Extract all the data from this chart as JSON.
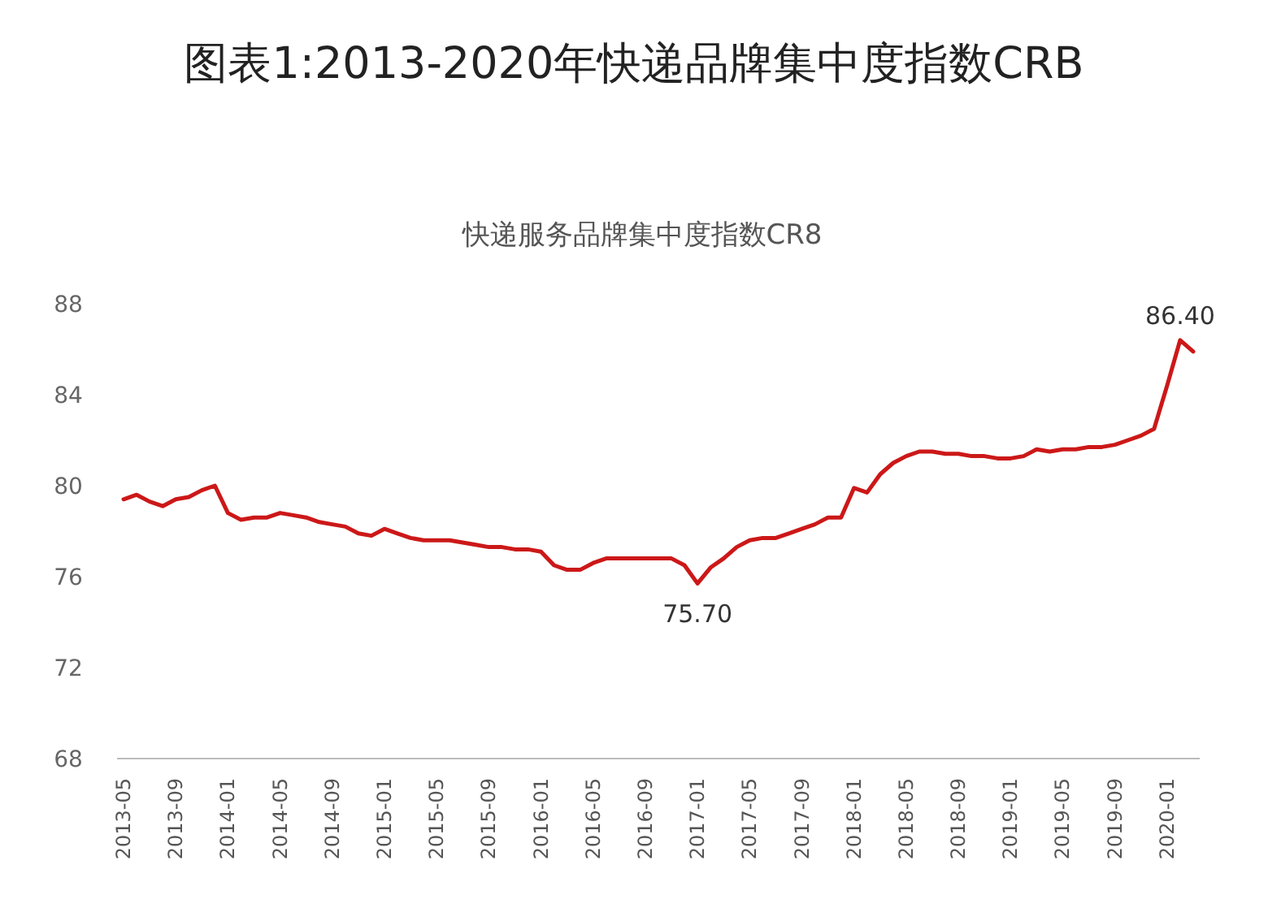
{
  "chart_data": {
    "type": "line",
    "title": "图表1:2013-2020年快递品牌集中度指数CRB",
    "subtitle": "快递服务品牌集中度指数CR8",
    "categories": [
      "2013-05",
      null,
      null,
      null,
      "2013-09",
      null,
      null,
      null,
      "2014-01",
      null,
      null,
      null,
      "2014-05",
      null,
      null,
      null,
      "2014-09",
      null,
      null,
      null,
      "2015-01",
      null,
      null,
      null,
      "2015-05",
      null,
      null,
      null,
      "2015-09",
      null,
      null,
      null,
      "2016-01",
      null,
      null,
      null,
      "2016-05",
      null,
      null,
      null,
      "2016-09",
      null,
      null,
      null,
      "2017-01",
      null,
      null,
      null,
      "2017-05",
      null,
      null,
      null,
      "2017-09",
      null,
      null,
      null,
      "2018-01",
      null,
      null,
      null,
      "2018-05",
      null,
      null,
      null,
      "2018-09",
      null,
      null,
      null,
      "2019-01",
      null,
      null,
      null,
      "2019-05",
      null,
      null,
      null,
      "2019-09",
      null,
      null,
      null,
      "2020-01",
      null,
      null
    ],
    "values": [
      79.4,
      79.6,
      79.3,
      79.1,
      79.4,
      79.5,
      79.8,
      80.0,
      78.8,
      78.5,
      78.6,
      78.6,
      78.8,
      78.7,
      78.6,
      78.4,
      78.3,
      78.2,
      77.9,
      77.8,
      78.1,
      77.9,
      77.7,
      77.6,
      77.6,
      77.6,
      77.5,
      77.4,
      77.3,
      77.3,
      77.2,
      77.2,
      77.1,
      76.5,
      76.3,
      76.3,
      76.6,
      76.8,
      76.8,
      76.8,
      76.8,
      76.8,
      76.8,
      76.5,
      75.7,
      76.4,
      76.8,
      77.3,
      77.6,
      77.7,
      77.7,
      77.9,
      78.1,
      78.3,
      78.6,
      78.6,
      79.9,
      79.7,
      80.5,
      81.0,
      81.3,
      81.5,
      81.5,
      81.4,
      81.4,
      81.3,
      81.3,
      81.2,
      81.2,
      81.3,
      81.6,
      81.5,
      81.6,
      81.6,
      81.7,
      81.7,
      81.8,
      82.0,
      82.2,
      82.5,
      84.4,
      86.4,
      85.9
    ],
    "value_labels": [
      null,
      null,
      null,
      null,
      null,
      null,
      null,
      null,
      null,
      null,
      null,
      null,
      null,
      null,
      null,
      null,
      null,
      null,
      null,
      null,
      null,
      null,
      null,
      null,
      null,
      null,
      null,
      null,
      null,
      null,
      null,
      null,
      null,
      null,
      null,
      null,
      null,
      null,
      null,
      null,
      null,
      null,
      null,
      null,
      "75.70",
      null,
      null,
      null,
      null,
      null,
      null,
      null,
      null,
      null,
      null,
      null,
      null,
      null,
      null,
      null,
      null,
      null,
      null,
      null,
      null,
      null,
      null,
      null,
      null,
      null,
      null,
      null,
      null,
      null,
      null,
      null,
      null,
      null,
      null,
      null,
      null,
      "86.40",
      null
    ],
    "color": "#cc1818",
    "ylim": [
      68,
      88
    ],
    "yticks": [
      68,
      72,
      76,
      80,
      84,
      88
    ]
  }
}
